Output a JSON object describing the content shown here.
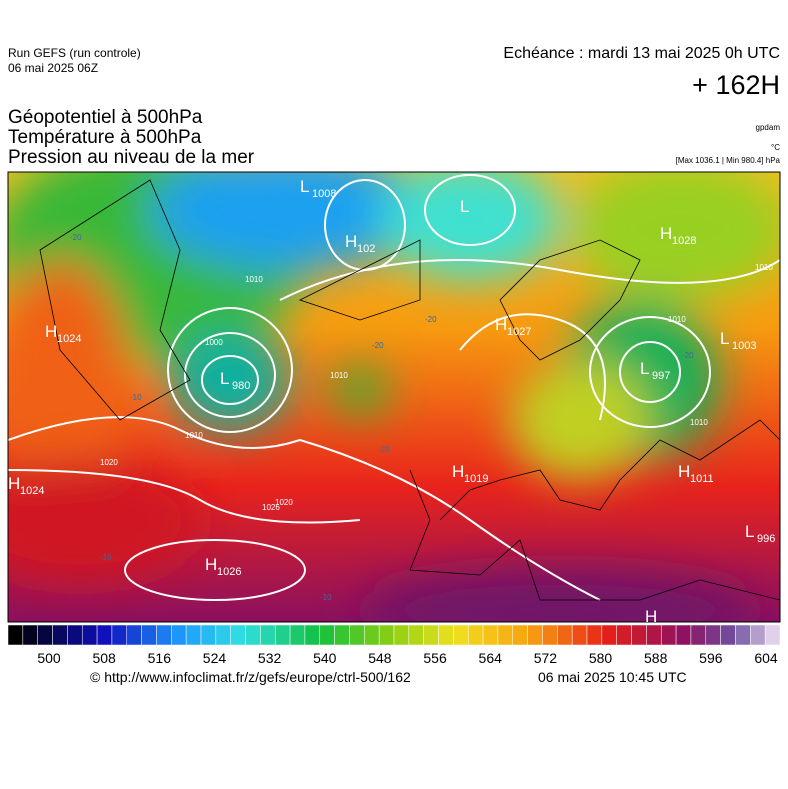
{
  "header": {
    "run": "Run GEFS (run controle)",
    "run_date": "06 mai 2025 06Z",
    "echeance": "Echéance : mardi 13 mai 2025 0h UTC",
    "lead": "+ 162H"
  },
  "fields": [
    "Géopotentiel à 500hPa",
    "Température à 500hPa",
    "Pression au niveau de la mer"
  ],
  "units": [
    "gpdam",
    "°C",
    "[Max 1036.1 | Min 980.4] hPa"
  ],
  "map": {
    "centers": [
      {
        "letter": "L",
        "value": "1008"
      },
      {
        "letter": "H",
        "value": "102"
      },
      {
        "letter": "L"
      },
      {
        "letter": "H",
        "value": "1028"
      },
      {
        "letter": "H",
        "value": "1024"
      },
      {
        "letter": "L",
        "value": "980"
      },
      {
        "letter": "H",
        "value": "1027"
      },
      {
        "letter": "L",
        "value": "1003"
      },
      {
        "letter": "L",
        "value": "997"
      },
      {
        "letter": "H",
        "value": "1019"
      },
      {
        "letter": "H",
        "value": "1011"
      },
      {
        "letter": "H",
        "value": "1024"
      },
      {
        "letter": "L",
        "value": "996"
      },
      {
        "letter": "H",
        "value": "1026"
      },
      {
        "letter": "H"
      }
    ],
    "isobar_labels": [
      "1010",
      "1000",
      "1010",
      "1010",
      "1020",
      "1026",
      "1010",
      "1020",
      "1010",
      "1010"
    ],
    "temperature_labels": [
      "-20",
      "-20",
      "-20",
      "-20",
      "-20",
      "-10",
      "-10",
      "-10"
    ]
  },
  "colorbar": {
    "ticks": [
      500,
      508,
      516,
      524,
      532,
      540,
      548,
      556,
      564,
      572,
      580,
      588,
      596,
      604
    ]
  },
  "footer": {
    "source": "© http://www.infoclimat.fr/z/gefs/europe/ctrl-500/162",
    "date": "06 mai 2025 10:45 UTC"
  }
}
